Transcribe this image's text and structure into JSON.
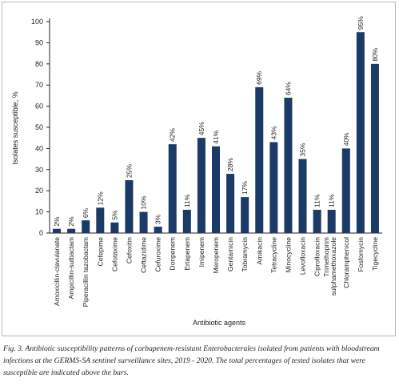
{
  "chart_data": {
    "type": "bar",
    "categories": [
      "Amoxicillin-clavulanate",
      "Ampicillin-sulbactam",
      "Piperacillin tazobactam",
      "Cefepime",
      "Cefotaxime",
      "Cefoxitin",
      "Ceftazidime",
      "Cefuroxime",
      "Doripenem",
      "Ertapenem",
      "Imipenem",
      "Meropenem",
      "Gentamicin",
      "Tobramycin",
      "Amikacin",
      "Tetracycline",
      "Minocycline",
      "Levofloxacin",
      "Ciprofloxacin",
      "Trimethoprim sulphamethoxazole",
      "Chloramphenicol",
      "Fosfomycin",
      "Tigecycline"
    ],
    "values": [
      2,
      2,
      6,
      12,
      5,
      25,
      10,
      3,
      42,
      11,
      45,
      41,
      28,
      17,
      69,
      43,
      64,
      35,
      11,
      11,
      40,
      95,
      80
    ],
    "data_labels": [
      "2%",
      "2%",
      "6%",
      "12%",
      "5%",
      "25%",
      "10%",
      "3%",
      "42%",
      "11%",
      "45%",
      "41%",
      "28%",
      "17%",
      "69%",
      "43%",
      "64%",
      "35%",
      "11%",
      "11%",
      "40%",
      "95%",
      "80%"
    ],
    "yticks": [
      "0",
      "10",
      "20",
      "30",
      "40",
      "50",
      "60",
      "70",
      "80",
      "90",
      "100"
    ],
    "ylim": [
      0,
      100
    ],
    "xlabel": "Antibiotic agents",
    "ylabel": "Isolates susceptible, %",
    "bar_color": "#1b3a66",
    "grid": false
  },
  "caption": "Fig. 3. Antibiotic susceptibility patterns of carbapenem-resistant Enterobacterales isolated from patients with bloodstream infections at the GERMS-SA sentinel surveillance sites, 2019 - 2020. The total percentages of tested isolates that were susceptible are indicated above the bars."
}
